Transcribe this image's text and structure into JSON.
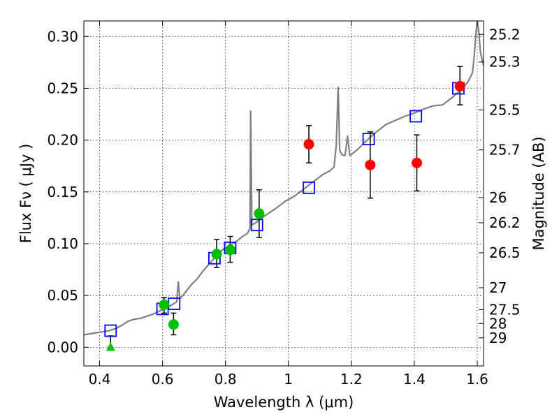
{
  "chart_data": {
    "type": "scatter",
    "xlabel": "Wavelength  λ (μm)",
    "ylabel": "Flux  Fν  ( μJy )",
    "y2label": "Magnitude (AB)",
    "xlim": [
      0.35,
      1.62
    ],
    "ylim": [
      -0.018,
      0.315
    ],
    "grid": true,
    "x_ticks": [
      0.4,
      0.6,
      0.8,
      1.0,
      1.2,
      1.4,
      1.6
    ],
    "x_tick_labels": [
      "0.4",
      "0.6",
      "0.8",
      "1",
      "1.2",
      "1.4",
      "1.6"
    ],
    "y_ticks": [
      0.0,
      0.05,
      0.1,
      0.15,
      0.2,
      0.25,
      0.3
    ],
    "y_tick_labels": [
      "0.00",
      "0.05",
      "0.10",
      "0.15",
      "0.20",
      "0.25",
      "0.30"
    ],
    "y2_ticks": [
      {
        "label": "25.2",
        "flux": 0.302
      },
      {
        "label": "25.3",
        "flux": 0.2754
      },
      {
        "label": "25.5",
        "flux": 0.2291
      },
      {
        "label": "25.7",
        "flux": 0.1905
      },
      {
        "label": "26",
        "flux": 0.1445
      },
      {
        "label": "26.2",
        "flux": 0.1202
      },
      {
        "label": "26.5",
        "flux": 0.0912
      },
      {
        "label": "27",
        "flux": 0.0575
      },
      {
        "label": "27.5",
        "flux": 0.0363
      },
      {
        "label": "28",
        "flux": 0.0229
      },
      {
        "label": "29",
        "flux": 0.0091
      }
    ],
    "sed_model": {
      "color": "#808080",
      "points": [
        [
          0.35,
          0.012
        ],
        [
          0.37,
          0.013
        ],
        [
          0.39,
          0.014
        ],
        [
          0.41,
          0.015
        ],
        [
          0.43,
          0.016
        ],
        [
          0.45,
          0.018
        ],
        [
          0.47,
          0.021
        ],
        [
          0.49,
          0.025
        ],
        [
          0.51,
          0.027
        ],
        [
          0.53,
          0.028
        ],
        [
          0.55,
          0.03
        ],
        [
          0.57,
          0.032
        ],
        [
          0.59,
          0.035
        ],
        [
          0.61,
          0.038
        ],
        [
          0.63,
          0.041
        ],
        [
          0.645,
          0.044
        ],
        [
          0.65,
          0.063
        ],
        [
          0.655,
          0.047
        ],
        [
          0.67,
          0.052
        ],
        [
          0.69,
          0.06
        ],
        [
          0.71,
          0.066
        ],
        [
          0.73,
          0.074
        ],
        [
          0.75,
          0.081
        ],
        [
          0.77,
          0.088
        ],
        [
          0.79,
          0.094
        ],
        [
          0.81,
          0.098
        ],
        [
          0.83,
          0.101
        ],
        [
          0.85,
          0.106
        ],
        [
          0.87,
          0.11
        ],
        [
          0.878,
          0.115
        ],
        [
          0.88,
          0.228
        ],
        [
          0.884,
          0.118
        ],
        [
          0.9,
          0.121
        ],
        [
          0.93,
          0.128
        ],
        [
          0.96,
          0.134
        ],
        [
          0.99,
          0.141
        ],
        [
          1.02,
          0.146
        ],
        [
          1.05,
          0.153
        ],
        [
          1.08,
          0.16
        ],
        [
          1.11,
          0.167
        ],
        [
          1.13,
          0.17
        ],
        [
          1.145,
          0.174
        ],
        [
          1.152,
          0.195
        ],
        [
          1.158,
          0.251
        ],
        [
          1.163,
          0.19
        ],
        [
          1.17,
          0.186
        ],
        [
          1.18,
          0.185
        ],
        [
          1.188,
          0.204
        ],
        [
          1.195,
          0.185
        ],
        [
          1.22,
          0.191
        ],
        [
          1.25,
          0.2
        ],
        [
          1.28,
          0.208
        ],
        [
          1.31,
          0.215
        ],
        [
          1.34,
          0.219
        ],
        [
          1.37,
          0.223
        ],
        [
          1.4,
          0.226
        ],
        [
          1.43,
          0.23
        ],
        [
          1.46,
          0.233
        ],
        [
          1.49,
          0.234
        ],
        [
          1.52,
          0.241
        ],
        [
          1.55,
          0.249
        ],
        [
          1.57,
          0.256
        ],
        [
          1.585,
          0.265
        ],
        [
          1.59,
          0.28
        ],
        [
          1.595,
          0.3
        ],
        [
          1.6,
          0.315
        ],
        [
          1.605,
          0.305
        ],
        [
          1.61,
          0.285
        ],
        [
          1.62,
          0.272
        ]
      ]
    },
    "series": [
      {
        "marker": "square-open",
        "color": "#0000ff",
        "points": [
          {
            "x": 0.435,
            "y": 0.016
          },
          {
            "x": 0.6,
            "y": 0.037
          },
          {
            "x": 0.637,
            "y": 0.042
          },
          {
            "x": 0.765,
            "y": 0.086
          },
          {
            "x": 0.815,
            "y": 0.096
          },
          {
            "x": 0.9,
            "y": 0.118
          },
          {
            "x": 1.065,
            "y": 0.154
          },
          {
            "x": 1.255,
            "y": 0.201
          },
          {
            "x": 1.405,
            "y": 0.223
          },
          {
            "x": 1.54,
            "y": 0.25
          }
        ]
      },
      {
        "marker": "circle",
        "color": "#00c000",
        "points": [
          {
            "x": 0.605,
            "y": 0.041,
            "yerr_low": 0.033,
            "yerr_high": 0.048
          },
          {
            "x": 0.635,
            "y": 0.022,
            "yerr_low": 0.012,
            "yerr_high": 0.033
          },
          {
            "x": 0.772,
            "y": 0.09,
            "yerr_low": 0.077,
            "yerr_high": 0.104
          },
          {
            "x": 0.815,
            "y": 0.094,
            "yerr_low": 0.082,
            "yerr_high": 0.107
          },
          {
            "x": 0.907,
            "y": 0.129,
            "yerr_low": 0.106,
            "yerr_high": 0.152
          }
        ]
      },
      {
        "marker": "circle",
        "color": "#ff0000",
        "points": [
          {
            "x": 1.065,
            "y": 0.196,
            "yerr_low": 0.178,
            "yerr_high": 0.214
          },
          {
            "x": 1.26,
            "y": 0.176,
            "yerr_low": 0.144,
            "yerr_high": 0.208
          },
          {
            "x": 1.408,
            "y": 0.178,
            "yerr_low": 0.151,
            "yerr_high": 0.205
          },
          {
            "x": 1.545,
            "y": 0.252,
            "yerr_low": 0.234,
            "yerr_high": 0.271
          }
        ]
      },
      {
        "marker": "triangle-up",
        "color": "#00c000",
        "points": [
          {
            "x": 0.435,
            "y": 0.0,
            "yerr_low": 0.0,
            "yerr_high": 0.011
          }
        ]
      }
    ]
  }
}
